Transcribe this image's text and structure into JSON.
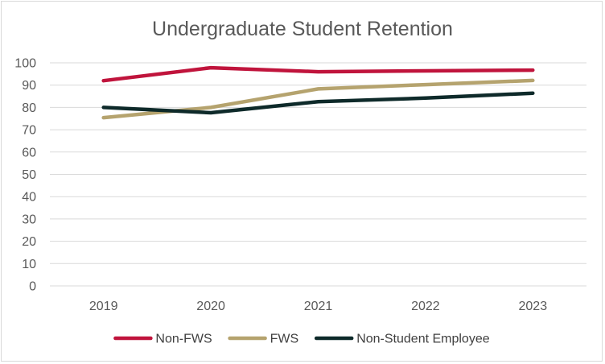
{
  "chart_data": {
    "type": "line",
    "title": "Undergraduate Student Retention",
    "xlabel": "",
    "ylabel": "",
    "categories": [
      "2019",
      "2020",
      "2021",
      "2022",
      "2023"
    ],
    "ylim": [
      0,
      100
    ],
    "yticks": [
      0,
      10,
      20,
      30,
      40,
      50,
      60,
      70,
      80,
      90,
      100
    ],
    "grid": true,
    "legend_position": "bottom",
    "series": [
      {
        "name": "Non-FWS",
        "color": "#c0143c",
        "values": [
          92.0,
          97.8,
          96.0,
          96.4,
          96.7
        ]
      },
      {
        "name": "FWS",
        "color": "#b5a36e",
        "values": [
          75.4,
          80.0,
          88.3,
          90.2,
          92.1
        ]
      },
      {
        "name": "Non-Student Employee",
        "color": "#0e2a2a",
        "values": [
          80.0,
          77.6,
          82.6,
          84.2,
          86.4
        ]
      }
    ]
  }
}
